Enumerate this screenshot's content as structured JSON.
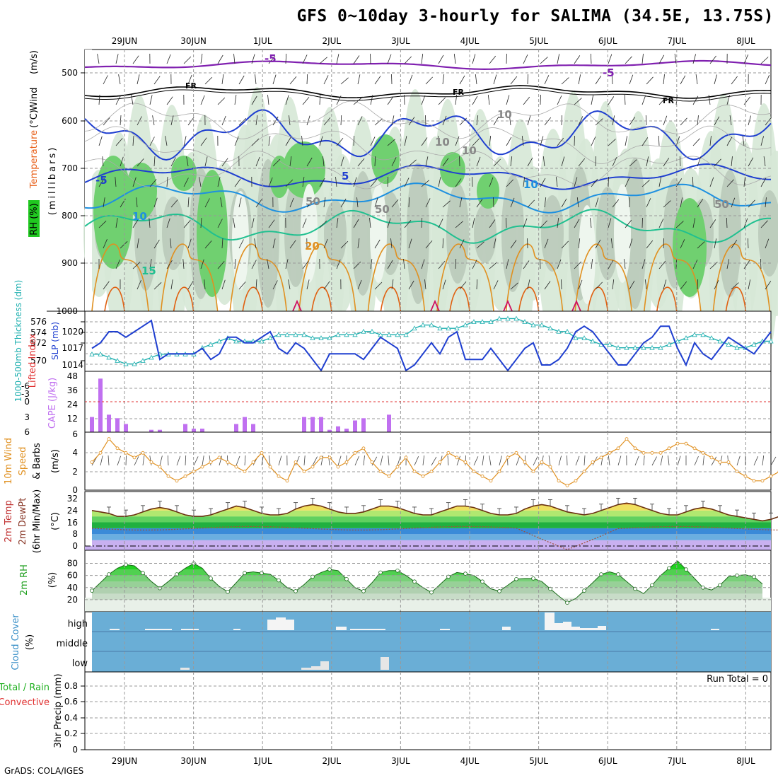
{
  "title": "GFS 0~10day 3-hourly for SALIMA (34.5E, 13.75S)",
  "footer": "GrADS: COLA/IGES",
  "days": [
    "29JUN",
    "30JUN",
    "1JUL",
    "2JUL",
    "3JUL",
    "4JUL",
    "5JUL",
    "6JUL",
    "7JUL",
    "8JUL"
  ],
  "panels": {
    "upper_air": {
      "label_wind": "Wind",
      "label_wind_unit": "(m/s)",
      "label_temp": "Temperature",
      "label_temp_unit": "(°C)",
      "label_rh": "RH (%)",
      "label_mb": "(millibars)",
      "pressure_ticks": [
        "500",
        "600",
        "700",
        "800",
        "900",
        "1000"
      ],
      "contour_labels": [
        "-5",
        "FR",
        "FR",
        "FR",
        "-5",
        "-5",
        "5",
        "10",
        "10",
        "15",
        "20",
        "50",
        "50",
        "10",
        "10",
        "10",
        "50"
      ]
    },
    "slp": {
      "label_thick": "1000-500mb Thickness (dm)",
      "label_slp": "SLP (mb)",
      "left_ticks": [
        "576",
        "574",
        "572",
        "570"
      ],
      "right_ticks": [
        "1020",
        "1017",
        "1014"
      ]
    },
    "cape": {
      "label_li": "Lifted Index",
      "label_cape": "CAPE (J/kg)",
      "left_ticks": [
        "-6",
        "-3",
        "0",
        "3",
        "6"
      ],
      "right_ticks": [
        "48",
        "36",
        "24",
        "12"
      ]
    },
    "wind10": {
      "label_a": "10m Wind",
      "label_b": "Speed",
      "label_c": "& Barbs",
      "label_unit": "(m/s)",
      "ticks": [
        "6",
        "4",
        "2",
        "0"
      ]
    },
    "temp2m": {
      "label_a": "2m Temp",
      "label_b": "2m DewPt",
      "label_c": "(6hr Min/Max)",
      "label_unit": "(°C)",
      "ticks": [
        "32",
        "24",
        "16",
        "8",
        "0"
      ]
    },
    "rh2m": {
      "label_a": "2m RH",
      "label_unit": "(%)",
      "ticks": [
        "80",
        "60",
        "40",
        "20"
      ]
    },
    "cloud": {
      "label_a": "Cloud Cover",
      "label_unit": "(%)",
      "levels": [
        "high",
        "middle",
        "low"
      ]
    },
    "precip": {
      "label_a": "Total / Rain",
      "label_b": "Convective",
      "label_c": "3hr Precip (mm)",
      "run_total": "Run Total = 0",
      "ticks": [
        "0.8",
        "0.6",
        "0.4",
        "0.2",
        "0"
      ]
    }
  },
  "colors": {
    "slp_line": "#1f3fd0",
    "thickness_line": "#20b0b0",
    "cape_bar": "#c070f0",
    "wind_line": "#e09020",
    "rh_fill": "#20c820",
    "cloud_bg": "#6aaed6"
  },
  "chart_data": [
    {
      "type": "line",
      "title": "SLP (mb)",
      "x_unit": "3-hour steps from 28 JUN 12Z",
      "values": [
        1017,
        1018,
        1020,
        1020,
        1019,
        1020,
        1021,
        1022,
        1015,
        1016,
        1016,
        1016,
        1016,
        1017,
        1015,
        1016,
        1019,
        1019,
        1018,
        1018,
        1019,
        1020,
        1017,
        1016,
        1018,
        1017,
        1015,
        1013,
        1016,
        1016,
        1016,
        1016,
        1015,
        1017,
        1019,
        1018,
        1017,
        1013,
        1014,
        1016,
        1018,
        1016,
        1019,
        1020,
        1015,
        1015,
        1015,
        1017,
        1015,
        1013,
        1015,
        1017,
        1018,
        1014,
        1014,
        1015,
        1017,
        1020,
        1021,
        1020,
        1018,
        1016,
        1014,
        1014,
        1016,
        1018,
        1019,
        1021,
        1021,
        1017,
        1014,
        1018,
        1016,
        1015,
        1017,
        1019,
        1018,
        1017,
        1016,
        1018,
        1020
      ]
    },
    {
      "type": "line",
      "title": "1000-500mb Thickness (dm)",
      "values": [
        571,
        571,
        570.5,
        570,
        569.5,
        569.5,
        570,
        570.5,
        571,
        571,
        571,
        571,
        571,
        572,
        572.5,
        573,
        573.5,
        573,
        573,
        573,
        573,
        573.5,
        574,
        574,
        574,
        574,
        573.5,
        573.5,
        573.5,
        574,
        574,
        574,
        574.5,
        574.5,
        574,
        574,
        574,
        574,
        575,
        575.5,
        575.5,
        575,
        575,
        575,
        575.5,
        576,
        576,
        576,
        576.5,
        576.5,
        576.5,
        576,
        575.5,
        575.5,
        575,
        574.5,
        574.5,
        573.5,
        573.5,
        573,
        572.5,
        572.5,
        572,
        572,
        572,
        572,
        572,
        572,
        572.5,
        573,
        573.5,
        574,
        574,
        573.5,
        573,
        572.5,
        572,
        572,
        572.5,
        573,
        573
      ]
    },
    {
      "type": "bar",
      "title": "CAPE (J/kg)",
      "values": [
        13,
        46,
        15,
        12,
        7,
        0,
        0,
        2,
        2,
        0,
        0,
        7,
        3,
        3,
        0,
        0,
        0,
        7,
        13,
        7,
        0,
        0,
        0,
        0,
        0,
        13,
        13,
        13,
        2,
        5,
        3,
        10,
        12,
        0,
        0,
        15
      ]
    },
    {
      "type": "line",
      "title": "10m Wind Speed (m/s)",
      "values": [
        3,
        4,
        5.5,
        4.5,
        4,
        3.5,
        4,
        3,
        2.5,
        1.5,
        1,
        1.5,
        2,
        2.5,
        3,
        3.5,
        3,
        2.5,
        2,
        3,
        4,
        2.5,
        1.5,
        1,
        3,
        2,
        2.5,
        3.5,
        3.5,
        2.5,
        3,
        4,
        4.5,
        3,
        2,
        1.5,
        2.5,
        3.5,
        2,
        1.5,
        2,
        3,
        4,
        3.5,
        3,
        2,
        1.5,
        1,
        2,
        3.5,
        4,
        3,
        2,
        3,
        2.5,
        1,
        0.5,
        1,
        2,
        3,
        3.5,
        4,
        4.5,
        5.5,
        4.5,
        4,
        4,
        4,
        4.5,
        5,
        5,
        4.5,
        4,
        3.5,
        3,
        3,
        2,
        1.5,
        1,
        1,
        1.5,
        2
      ]
    },
    {
      "type": "line",
      "title": "2m Temp (°C)",
      "values": [
        24,
        23,
        22,
        20,
        20,
        21,
        23,
        25,
        26,
        25,
        23,
        21,
        20,
        20,
        21,
        23,
        25,
        27,
        26,
        24,
        22,
        21,
        21,
        22,
        25,
        27,
        28,
        27,
        25,
        23,
        22,
        22,
        23,
        25,
        27,
        27,
        26,
        24,
        22,
        21,
        21,
        23,
        25,
        27,
        27,
        26,
        24,
        22,
        21,
        21,
        22,
        25,
        27,
        28,
        27,
        25,
        23,
        22,
        21,
        22,
        24,
        26,
        28,
        29,
        28,
        26,
        24,
        22,
        21,
        21,
        23,
        25,
        26,
        25,
        23,
        21,
        20,
        19,
        18,
        17,
        18,
        20
      ]
    },
    {
      "type": "line",
      "title": "2m RH (%)",
      "values": [
        35,
        48,
        62,
        72,
        78,
        76,
        64,
        50,
        39,
        50,
        62,
        72,
        80,
        72,
        55,
        42,
        33,
        48,
        64,
        66,
        64,
        62,
        52,
        40,
        34,
        45,
        58,
        65,
        70,
        68,
        54,
        40,
        34,
        48,
        65,
        68,
        68,
        60,
        50,
        40,
        32,
        45,
        58,
        65,
        63,
        60,
        50,
        38,
        34,
        44,
        54,
        55,
        55,
        50,
        38,
        26,
        15,
        22,
        35,
        48,
        62,
        66,
        62,
        50,
        38,
        30,
        44,
        60,
        72,
        84,
        70,
        55,
        40,
        36,
        44,
        58,
        60,
        61,
        58,
        46
      ]
    },
    {
      "type": "bar",
      "title": "3hr Precip (mm)",
      "values": [
        0,
        0,
        0,
        0,
        0,
        0,
        0,
        0,
        0,
        0,
        0,
        0,
        0,
        0,
        0,
        0,
        0,
        0,
        0,
        0,
        0,
        0,
        0,
        0,
        0,
        0,
        0,
        0,
        0,
        0,
        0,
        0,
        0,
        0,
        0,
        0,
        0,
        0,
        0,
        0,
        0,
        0,
        0,
        0,
        0,
        0,
        0,
        0,
        0,
        0,
        0,
        0,
        0,
        0,
        0,
        0,
        0,
        0,
        0,
        0,
        0,
        0,
        0,
        0,
        0,
        0,
        0,
        0,
        0,
        0,
        0,
        0,
        0,
        0,
        0,
        0,
        0,
        0,
        0,
        0,
        0
      ],
      "ylim": [
        0,
        1
      ]
    }
  ]
}
